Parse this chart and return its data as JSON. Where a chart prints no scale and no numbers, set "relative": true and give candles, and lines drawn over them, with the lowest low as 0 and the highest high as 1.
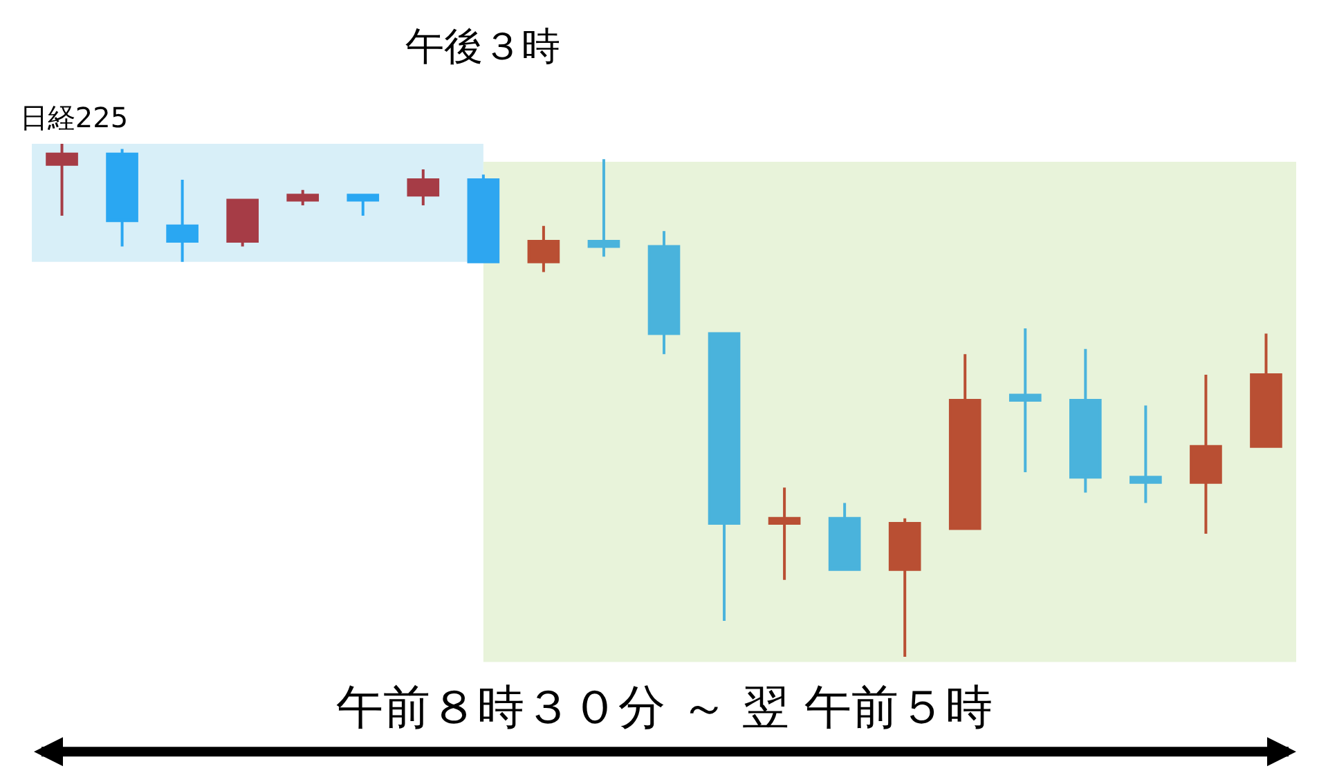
{
  "chart_data": {
    "type": "candlestick",
    "title": "日経225",
    "relative": true,
    "categories": [
      null,
      null,
      null,
      null,
      null,
      null,
      null,
      null,
      null,
      null,
      null,
      null,
      null,
      null,
      null,
      null,
      null,
      null,
      null,
      null,
      null
    ],
    "ohlc": [
      [
        0.96,
        1.0,
        0.86,
        0.98
      ],
      [
        0.98,
        0.99,
        0.8,
        0.85
      ],
      [
        0.84,
        0.93,
        0.77,
        0.81
      ],
      [
        0.81,
        0.89,
        0.8,
        0.89
      ],
      [
        0.89,
        0.91,
        0.88,
        0.9
      ],
      [
        0.9,
        0.9,
        0.86,
        0.89
      ],
      [
        0.9,
        0.95,
        0.88,
        0.93
      ],
      [
        0.93,
        0.94,
        0.77,
        0.77
      ],
      [
        0.77,
        0.84,
        0.75,
        0.81
      ],
      [
        0.81,
        0.97,
        0.78,
        0.8
      ],
      [
        0.8,
        0.83,
        0.59,
        0.63
      ],
      [
        0.63,
        0.63,
        0.07,
        0.26
      ],
      [
        0.26,
        0.33,
        0.15,
        0.27
      ],
      [
        0.27,
        0.3,
        0.17,
        0.17
      ],
      [
        0.17,
        0.27,
        0.0,
        0.26
      ],
      [
        0.25,
        0.59,
        0.25,
        0.5
      ],
      [
        0.51,
        0.64,
        0.36,
        0.5
      ],
      [
        0.5,
        0.6,
        0.32,
        0.35
      ],
      [
        0.35,
        0.49,
        0.3,
        0.34
      ],
      [
        0.34,
        0.55,
        0.24,
        0.41
      ],
      [
        0.41,
        0.63,
        0.41,
        0.55
      ]
    ],
    "colors": [
      "#a63c46",
      "#2aa7f2",
      "#2aa7f2",
      "#a63c46",
      "#a63c46",
      "#2aa7f2",
      "#a63c46",
      "#2ea6f0",
      "#b94f33",
      "#4ab3dc",
      "#4ab3dc",
      "#4ab3dc",
      "#b94f33",
      "#4ab3dc",
      "#b94f33",
      "#b94f33",
      "#4ab3dc",
      "#4ab3dc",
      "#4ab3dc",
      "#b94f33",
      "#b94f33"
    ],
    "annotations": [
      "午後３時",
      "午前８時３０分 ～ 翌 午前５時"
    ]
  }
}
